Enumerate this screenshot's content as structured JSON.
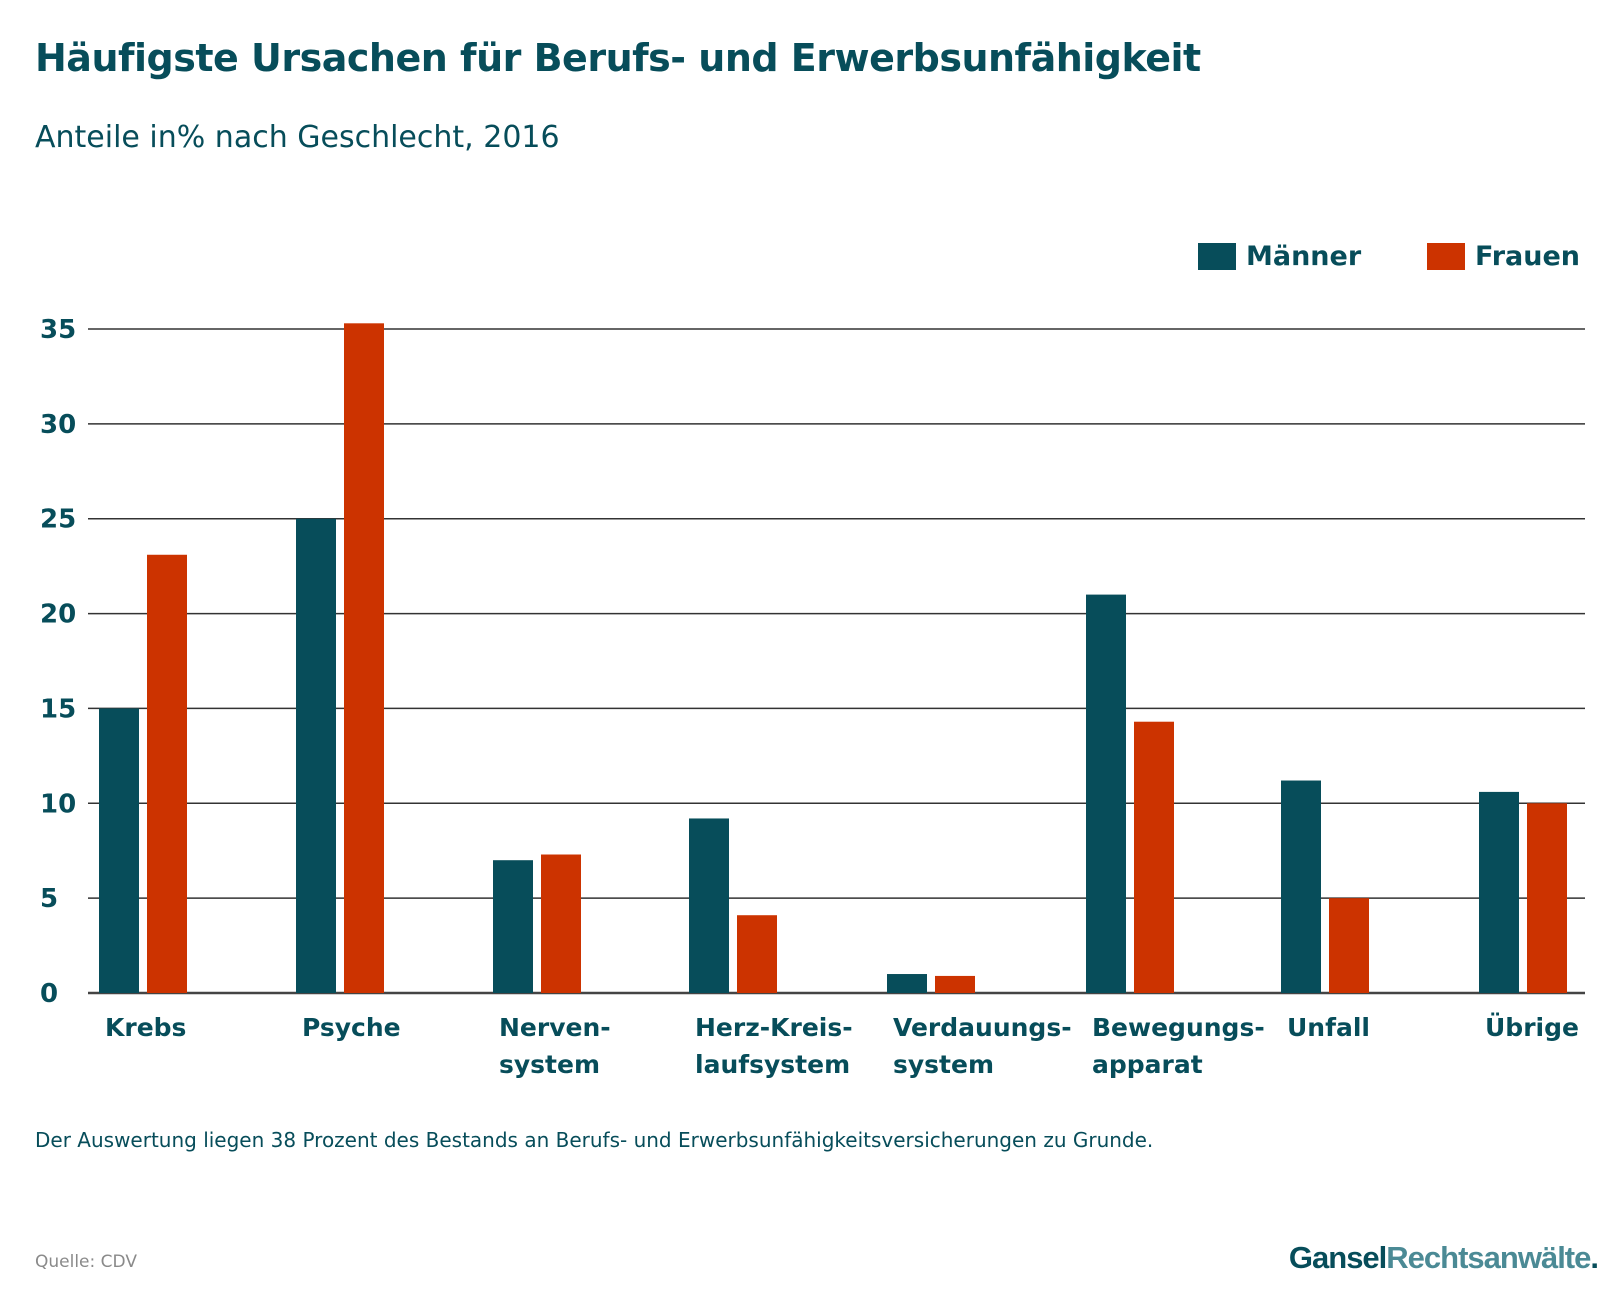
{
  "chart_data": {
    "type": "bar",
    "title": "Häufigste Ursachen für Berufs- und Erwerbsunfähigkeit",
    "subtitle": "Anteile in% nach Geschlecht, 2016",
    "categories": [
      [
        "Krebs"
      ],
      [
        "Psyche"
      ],
      [
        "Nerven-",
        "system"
      ],
      [
        "Herz-Kreis-",
        "laufsystem"
      ],
      [
        "Verdauungs-",
        "system"
      ],
      [
        "Bewegungs-",
        "apparat"
      ],
      [
        "Unfall"
      ],
      [
        "Übrige"
      ]
    ],
    "series": [
      {
        "name": "Männer",
        "color": "#074d5a",
        "values": [
          15,
          25,
          7,
          9.2,
          1,
          21,
          11.2,
          10.6
        ]
      },
      {
        "name": "Frauen",
        "color": "#cc3300",
        "values": [
          23.1,
          35.3,
          7.3,
          4.1,
          0.9,
          14.3,
          5,
          10
        ]
      }
    ],
    "ylim": [
      0,
      35
    ],
    "yticks": [
      "0",
      "5",
      "10",
      "15",
      "20",
      "25",
      "30",
      "35"
    ],
    "grid": true,
    "legend_position": "top-right"
  },
  "footnote": "Der Auswertung liegen 38 Prozent des Bestands an Berufs- und Erwerbsunfähigkeitsversicherungen zu Grunde.",
  "source": "Quelle: CDV",
  "logo": {
    "part1": "Gansel",
    "part2": "Rechtsanwälte",
    "part3": "."
  }
}
